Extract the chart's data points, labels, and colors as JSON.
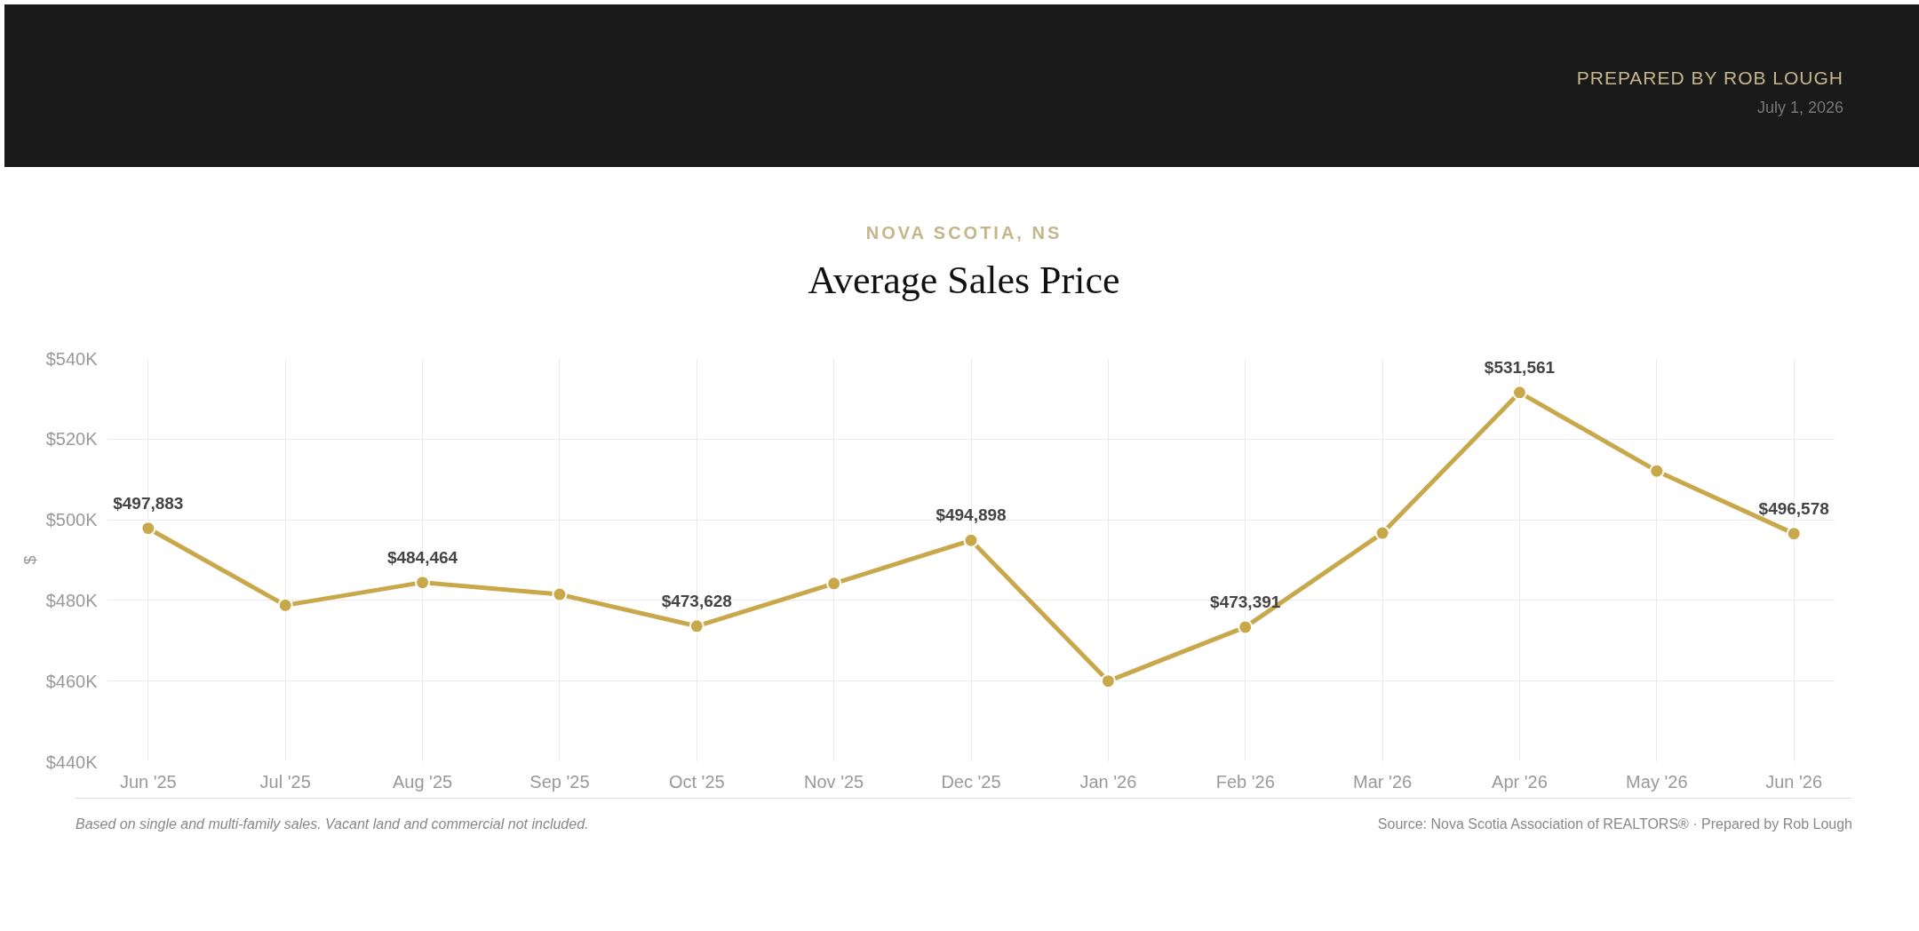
{
  "chart_data": {
    "type": "line",
    "subtitle": "NOVA SCOTIA, NS",
    "title": "Average Sales Price",
    "ylabel": "$",
    "categories": [
      "Jun '25",
      "Jul '25",
      "Aug '25",
      "Sep '25",
      "Oct '25",
      "Nov '25",
      "Dec '25",
      "Jan '26",
      "Feb '26",
      "Mar '26",
      "Apr '26",
      "May '26",
      "Jun '26"
    ],
    "series": [
      {
        "color": "#c9a84c",
        "values": [
          497883,
          478800,
          484464,
          481500,
          473628,
          484200,
          494898,
          460000,
          473391,
          496700,
          531561,
          512100,
          496578
        ],
        "value_labels": [
          "$497,883",
          null,
          "$484,464",
          null,
          "$473,628",
          null,
          "$494,898",
          null,
          "$473,391",
          null,
          "$531,561",
          null,
          "$496,578"
        ]
      }
    ],
    "ylim": [
      440000,
      540000
    ],
    "yticks": [
      {
        "value": 440000,
        "label": "$440K"
      },
      {
        "value": 460000,
        "label": "$460K"
      },
      {
        "value": 480000,
        "label": "$480K"
      },
      {
        "value": 500000,
        "label": "$500K"
      },
      {
        "value": 520000,
        "label": "$520K"
      },
      {
        "value": 540000,
        "label": "$540K"
      }
    ],
    "grid": true,
    "marker": "circle",
    "line_style": "solid",
    "annotations": [
      "PREPARED BY ROB LOUGH",
      "July 1, 2026",
      "Based on single and multi-family sales. Vacant land and commercial not included.",
      "Source: Nova Scotia Association of REALTORS® · Prepared by Rob Lough"
    ]
  }
}
